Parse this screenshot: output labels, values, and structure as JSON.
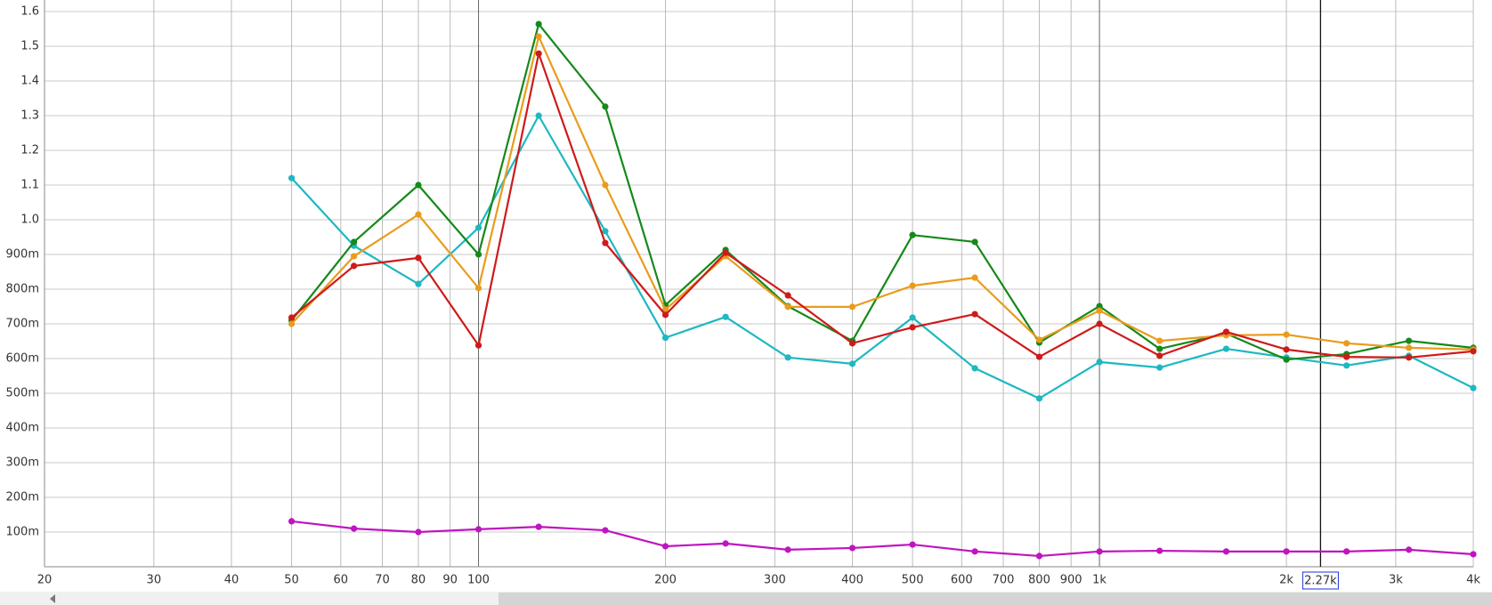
{
  "chart_data": {
    "type": "line",
    "xscale": "log",
    "grid": true,
    "xlim": [
      20,
      4000
    ],
    "ylim": [
      0,
      1.6
    ],
    "xticks": [
      20,
      30,
      40,
      50,
      60,
      70,
      80,
      90,
      100,
      200,
      300,
      400,
      500,
      600,
      700,
      800,
      900,
      {
        "value": 1000,
        "label": "1k"
      },
      {
        "value": 2000,
        "label": "2k"
      },
      {
        "value": 3000,
        "label": "3k"
      },
      {
        "value": 4000,
        "label": "4k"
      }
    ],
    "yticks": [
      {
        "value": 0.1,
        "label": "100m"
      },
      {
        "value": 0.2,
        "label": "200m"
      },
      {
        "value": 0.3,
        "label": "300m"
      },
      {
        "value": 0.4,
        "label": "400m"
      },
      {
        "value": 0.5,
        "label": "500m"
      },
      {
        "value": 0.6,
        "label": "600m"
      },
      {
        "value": 0.7,
        "label": "700m"
      },
      {
        "value": 0.8,
        "label": "800m"
      },
      {
        "value": 0.9,
        "label": "900m"
      },
      {
        "value": 1.0,
        "label": "1.0"
      },
      1.1,
      1.2,
      1.3,
      1.4,
      1.5,
      1.6
    ],
    "cursor": {
      "value": 2270,
      "label": "2.27k"
    },
    "x": [
      50,
      63,
      80,
      100,
      125,
      160,
      200,
      250,
      315,
      400,
      500,
      630,
      800,
      1000,
      1250,
      1600,
      2000,
      2500,
      3150,
      4000
    ],
    "series": [
      {
        "color": "#1db8c2",
        "values": [
          1.12,
          0.925,
          0.815,
          0.977,
          1.3,
          0.967,
          0.66,
          0.72,
          0.603,
          0.585,
          0.718,
          0.572,
          0.485,
          0.59,
          0.574,
          0.628,
          0.603,
          0.58,
          0.608,
          0.515
        ]
      },
      {
        "color": "#15891a",
        "values": [
          0.71,
          0.936,
          1.1,
          0.9,
          1.564,
          1.326,
          0.754,
          0.913,
          0.751,
          0.651,
          0.956,
          0.936,
          0.646,
          0.751,
          0.628,
          0.672,
          0.597,
          0.613,
          0.651,
          0.631
        ]
      },
      {
        "color": "#e99c1c",
        "values": [
          0.7,
          0.895,
          1.015,
          0.803,
          1.528,
          1.1,
          0.741,
          0.895,
          0.749,
          0.749,
          0.81,
          0.833,
          0.654,
          0.738,
          0.651,
          0.667,
          0.669,
          0.644,
          0.631,
          0.626
        ]
      },
      {
        "color": "#cf1a1a",
        "values": [
          0.718,
          0.867,
          0.89,
          0.638,
          1.479,
          0.933,
          0.726,
          0.905,
          0.782,
          0.644,
          0.69,
          0.728,
          0.605,
          0.7,
          0.608,
          0.677,
          0.626,
          0.605,
          0.603,
          0.621
        ]
      },
      {
        "color": "#c014c0",
        "values": [
          0.131,
          0.11,
          0.1,
          0.108,
          0.115,
          0.105,
          0.059,
          0.067,
          0.049,
          0.054,
          0.064,
          0.044,
          0.031,
          0.044,
          0.046,
          0.044,
          0.044,
          0.044,
          0.049,
          0.036
        ]
      }
    ]
  }
}
